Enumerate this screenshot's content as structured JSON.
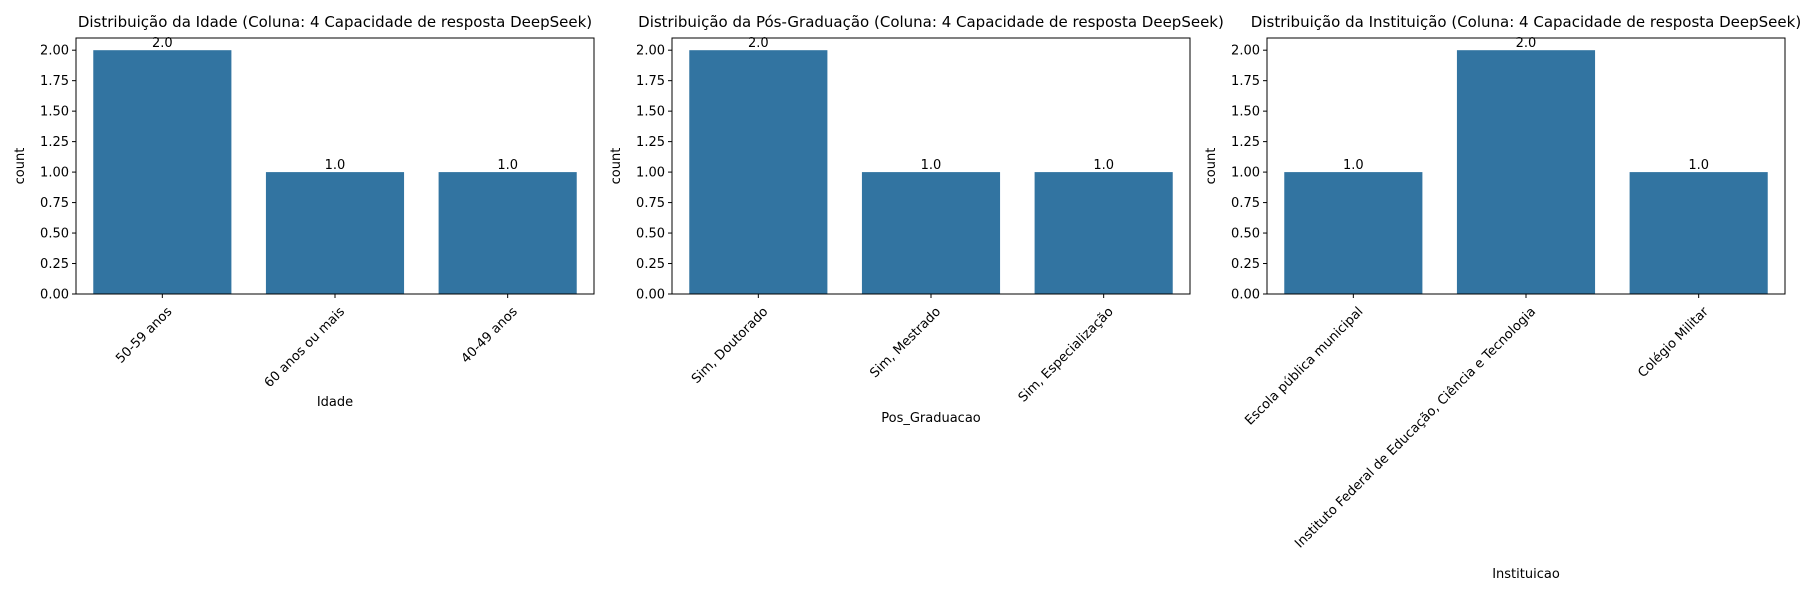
{
  "figure": {
    "background": "#ffffff",
    "bar_color": "#3274a1"
  },
  "chart_data": [
    {
      "type": "bar",
      "title": "Distribuição da Idade (Coluna: 4 Capacidade de resposta DeepSeek)",
      "xlabel": "Idade",
      "ylabel": "count",
      "categories": [
        "50-59 anos",
        "60 anos ou mais",
        "40-49 anos"
      ],
      "values": [
        2.0,
        1.0,
        1.0
      ],
      "data_labels": [
        "2.0",
        "1.0",
        "1.0"
      ],
      "ylim": [
        0,
        2.1
      ],
      "yticks": [
        "0.00",
        "0.25",
        "0.50",
        "0.75",
        "1.00",
        "1.25",
        "1.50",
        "1.75",
        "2.00"
      ],
      "xtick_rotation": 45,
      "grid": false,
      "legend": "none"
    },
    {
      "type": "bar",
      "title": "Distribuição da Pós-Graduação (Coluna: 4 Capacidade de resposta DeepSeek)",
      "xlabel": "Pos_Graduacao",
      "ylabel": "count",
      "categories": [
        "Sim, Doutorado",
        "Sim, Mestrado",
        "Sim, Especialização"
      ],
      "values": [
        2.0,
        1.0,
        1.0
      ],
      "data_labels": [
        "2.0",
        "1.0",
        "1.0"
      ],
      "ylim": [
        0,
        2.1
      ],
      "yticks": [
        "0.00",
        "0.25",
        "0.50",
        "0.75",
        "1.00",
        "1.25",
        "1.50",
        "1.75",
        "2.00"
      ],
      "xtick_rotation": 45,
      "grid": false,
      "legend": "none"
    },
    {
      "type": "bar",
      "title": "Distribuição da Instituição (Coluna: 4 Capacidade de resposta DeepSeek)",
      "xlabel": "Instituicao",
      "ylabel": "count",
      "categories": [
        "Escola pública municipal",
        "Instituto Federal de Educação, Ciência e Tecnologia",
        "Colégio Militar"
      ],
      "values": [
        1.0,
        2.0,
        1.0
      ],
      "data_labels": [
        "1.0",
        "2.0",
        "1.0"
      ],
      "ylim": [
        0,
        2.1
      ],
      "yticks": [
        "0.00",
        "0.25",
        "0.50",
        "0.75",
        "1.00",
        "1.25",
        "1.50",
        "1.75",
        "2.00"
      ],
      "xtick_rotation": 45,
      "grid": false,
      "legend": "none"
    }
  ]
}
